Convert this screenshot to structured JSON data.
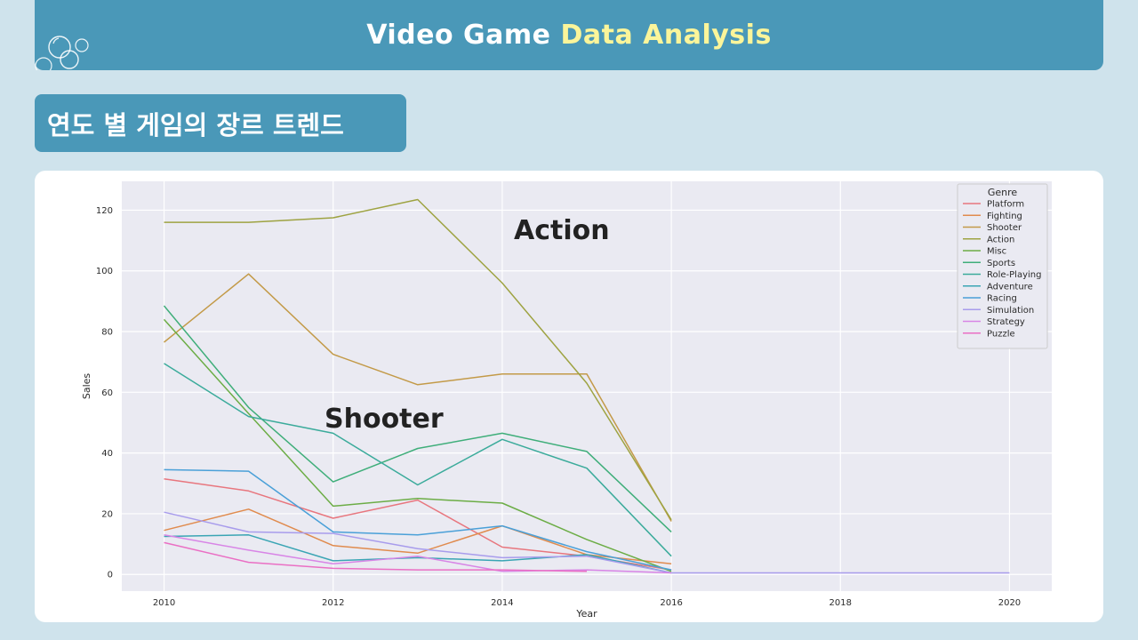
{
  "header": {
    "title_part1": "Video Game",
    "title_part2": "Data Analysis"
  },
  "section": {
    "title": "연도 별 게임의 장르 트렌드"
  },
  "colors": {
    "header_bg": "#4a98b8",
    "highlight": "#fbf59a",
    "page_bg": "#cfe3ec",
    "plot_bg": "#eaeaf2"
  },
  "chart_data": {
    "type": "line",
    "xlabel": "Year",
    "ylabel": "Sales",
    "xlim": [
      2009.5,
      2020.5
    ],
    "ylim": [
      -5.5,
      129.5
    ],
    "xticks": [
      2010,
      2012,
      2014,
      2016,
      2018,
      2020
    ],
    "yticks": [
      0,
      20,
      40,
      60,
      80,
      100,
      120
    ],
    "grid": true,
    "legend_title": "Genre",
    "legend_position": "top-right",
    "annotations": [
      "Action",
      "Shooter"
    ],
    "series": [
      {
        "name": "Platform",
        "color": "#e8767e",
        "x": [
          2010,
          2011,
          2012,
          2013,
          2014,
          2015,
          2016
        ],
        "y": [
          31.5,
          27.5,
          18.5,
          24.5,
          9.0,
          6.0,
          1.5
        ]
      },
      {
        "name": "Fighting",
        "color": "#e08b4e",
        "x": [
          2010,
          2011,
          2012,
          2013,
          2014,
          2015,
          2016
        ],
        "y": [
          14.5,
          21.5,
          9.5,
          7.0,
          16.0,
          6.5,
          3.5
        ]
      },
      {
        "name": "Shooter",
        "color": "#c39a48",
        "x": [
          2010,
          2011,
          2012,
          2013,
          2014,
          2015,
          2016
        ],
        "y": [
          76.5,
          99.0,
          72.5,
          62.5,
          66.0,
          66.0,
          17.5
        ]
      },
      {
        "name": "Action",
        "color": "#9ea342",
        "x": [
          2010,
          2011,
          2012,
          2013,
          2014,
          2015,
          2016
        ],
        "y": [
          116.0,
          116.0,
          117.5,
          123.5,
          96.0,
          63.0,
          18.0
        ]
      },
      {
        "name": "Misc",
        "color": "#6cad46",
        "x": [
          2010,
          2011,
          2012,
          2013,
          2014,
          2015,
          2016
        ],
        "y": [
          84.0,
          53.0,
          22.5,
          25.0,
          23.5,
          11.5,
          1.0
        ]
      },
      {
        "name": "Sports",
        "color": "#3fae7a",
        "x": [
          2010,
          2011,
          2012,
          2013,
          2014,
          2015,
          2016
        ],
        "y": [
          88.5,
          55.0,
          30.5,
          41.5,
          46.5,
          40.5,
          14.0
        ]
      },
      {
        "name": "Role-Playing",
        "color": "#3bab9b",
        "x": [
          2010,
          2011,
          2012,
          2013,
          2014,
          2015,
          2016
        ],
        "y": [
          69.5,
          52.0,
          46.5,
          29.5,
          44.5,
          35.0,
          6.0
        ]
      },
      {
        "name": "Adventure",
        "color": "#3aa5b4",
        "x": [
          2010,
          2011,
          2012,
          2013,
          2014,
          2015,
          2016
        ],
        "y": [
          12.5,
          13.0,
          4.5,
          5.5,
          4.5,
          6.5,
          0.5
        ]
      },
      {
        "name": "Racing",
        "color": "#4aa0d8",
        "x": [
          2010,
          2011,
          2012,
          2013,
          2014,
          2015,
          2016
        ],
        "y": [
          34.5,
          34.0,
          14.0,
          13.0,
          16.0,
          7.5,
          1.5
        ]
      },
      {
        "name": "Simulation",
        "color": "#a89cec",
        "x": [
          2010,
          2011,
          2012,
          2013,
          2014,
          2015,
          2016,
          2020
        ],
        "y": [
          20.5,
          14.0,
          13.5,
          8.5,
          5.5,
          6.0,
          0.5,
          0.5
        ]
      },
      {
        "name": "Strategy",
        "color": "#d885e6",
        "x": [
          2010,
          2011,
          2012,
          2013,
          2014,
          2015,
          2016
        ],
        "y": [
          13.0,
          8.0,
          3.5,
          6.0,
          1.0,
          1.5,
          0.5
        ]
      },
      {
        "name": "Puzzle",
        "color": "#ea6fc4",
        "x": [
          2010,
          2011,
          2012,
          2013,
          2014,
          2015
        ],
        "y": [
          10.5,
          4.0,
          2.0,
          1.5,
          1.5,
          1.0
        ]
      }
    ]
  }
}
